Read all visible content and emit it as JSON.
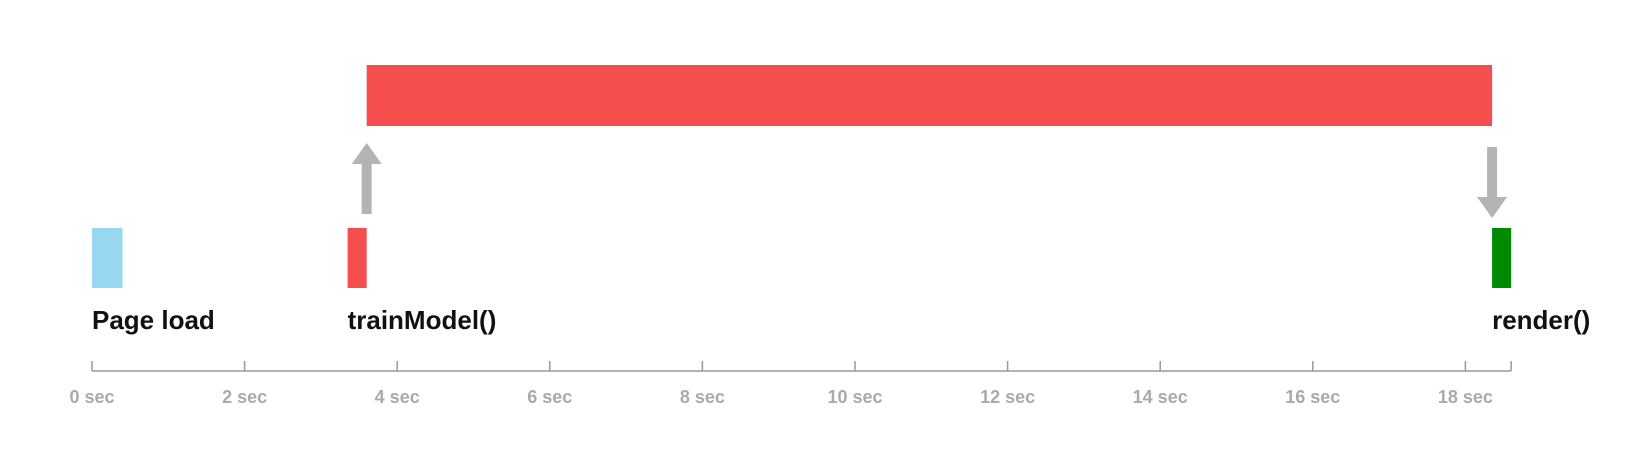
{
  "chart_data": {
    "type": "timeline",
    "x_unit": "sec",
    "xlim": [
      0,
      18.6
    ],
    "ticks": [
      {
        "value": 0,
        "label": "0 sec"
      },
      {
        "value": 2,
        "label": "2 sec"
      },
      {
        "value": 4,
        "label": "4 sec"
      },
      {
        "value": 6,
        "label": "6 sec"
      },
      {
        "value": 8,
        "label": "8 sec"
      },
      {
        "value": 10,
        "label": "10 sec"
      },
      {
        "value": 12,
        "label": "12 sec"
      },
      {
        "value": 14,
        "label": "14 sec"
      },
      {
        "value": 16,
        "label": "16 sec"
      },
      {
        "value": 18,
        "label": "18 sec"
      }
    ],
    "events": [
      {
        "id": "page-load",
        "label": "Page load",
        "start": 0,
        "end": 0.4,
        "color": "#97d8f0"
      },
      {
        "id": "train-model",
        "label": "trainModel()",
        "start": 3.35,
        "end": 3.6,
        "color": "#f44e4f"
      },
      {
        "id": "render",
        "label": "render()",
        "start": 18.35,
        "end": 18.6,
        "color": "#008a00"
      }
    ],
    "long_task": {
      "start": 3.6,
      "end": 18.35,
      "color": "#f44e4f"
    },
    "arrows": [
      {
        "id": "up-arrow",
        "at": 3.6,
        "direction": "up",
        "color": "#b3b3b3"
      },
      {
        "id": "down-arrow",
        "at": 18.35,
        "direction": "down",
        "color": "#b3b3b3"
      }
    ],
    "grid": false,
    "legend": "none"
  }
}
